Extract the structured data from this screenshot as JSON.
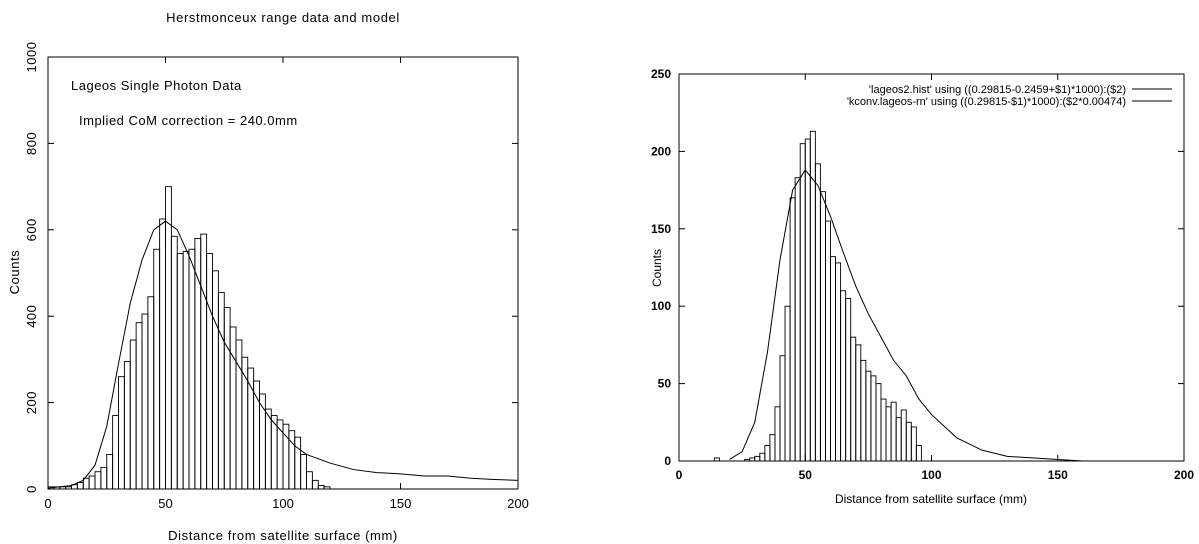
{
  "chart_data": [
    {
      "type": "bar",
      "title": "Herstmonceux range data and model",
      "xlabel": "Distance from satellite surface (mm)",
      "ylabel": "Counts",
      "xlim": [
        0,
        200
      ],
      "ylim": [
        0,
        1000
      ],
      "x_ticks": [
        "0",
        "50",
        "100",
        "150",
        "200"
      ],
      "y_ticks": [
        "0",
        "200",
        "400",
        "600",
        "800",
        "1000"
      ],
      "annotations": [
        "Lageos  Single Photon Data",
        "Implied CoM correction = 240.0mm"
      ],
      "bin_width": 2.5,
      "bin_start": 0,
      "histogram_counts": [
        5,
        5,
        5,
        5,
        10,
        15,
        25,
        30,
        40,
        50,
        80,
        170,
        260,
        295,
        345,
        385,
        405,
        445,
        555,
        625,
        700,
        585,
        545,
        550,
        555,
        580,
        590,
        545,
        505,
        455,
        420,
        375,
        345,
        305,
        280,
        250,
        220,
        185,
        170,
        160,
        150,
        135,
        120,
        80,
        40,
        20,
        8,
        5
      ],
      "model_curve": {
        "x": [
          0,
          10,
          15,
          20,
          25,
          30,
          35,
          40,
          45,
          50,
          55,
          60,
          65,
          70,
          75,
          80,
          85,
          90,
          95,
          100,
          105,
          110,
          120,
          130,
          140,
          150,
          160,
          165,
          170,
          180,
          190,
          200
        ],
        "y": [
          2,
          8,
          20,
          55,
          145,
          290,
          430,
          530,
          600,
          620,
          600,
          540,
          470,
          400,
          340,
          295,
          250,
          200,
          160,
          130,
          100,
          80,
          60,
          45,
          38,
          35,
          30,
          30,
          30,
          25,
          22,
          20
        ]
      }
    },
    {
      "type": "bar",
      "title": "",
      "xlabel": "Distance from satellite surface (mm)",
      "ylabel": "Counts",
      "xlim": [
        0,
        200
      ],
      "ylim": [
        0,
        250
      ],
      "x_ticks": [
        "0",
        "50",
        "100",
        "150",
        "200"
      ],
      "y_ticks": [
        "0",
        "50",
        "100",
        "150",
        "200",
        "250"
      ],
      "legend": [
        "'lageos2.hist' using ((0.29815-0.2459+$1)*1000):($2)",
        "'kconv.lageos-rn' using ((0.29815-$1)*1000):($2*0.00474)"
      ],
      "bin_width": 2,
      "bin_start": 14,
      "histogram_counts": [
        2,
        0,
        0,
        0,
        0,
        0,
        1,
        2,
        3,
        5,
        10,
        17,
        35,
        68,
        100,
        170,
        183,
        205,
        208,
        213,
        192,
        174,
        155,
        132,
        128,
        110,
        105,
        80,
        75,
        65,
        58,
        55,
        50,
        40,
        35,
        38,
        28,
        33,
        25,
        22,
        10,
        0,
        0
      ],
      "model_curve": {
        "x": [
          20,
          25,
          30,
          35,
          40,
          45,
          50,
          55,
          60,
          65,
          70,
          75,
          80,
          85,
          90,
          95,
          100,
          110,
          120,
          130,
          140,
          150,
          160
        ],
        "y": [
          1,
          6,
          25,
          70,
          130,
          175,
          188,
          178,
          158,
          135,
          113,
          95,
          80,
          65,
          55,
          40,
          30,
          15,
          7,
          3,
          2,
          1,
          0
        ]
      }
    }
  ]
}
